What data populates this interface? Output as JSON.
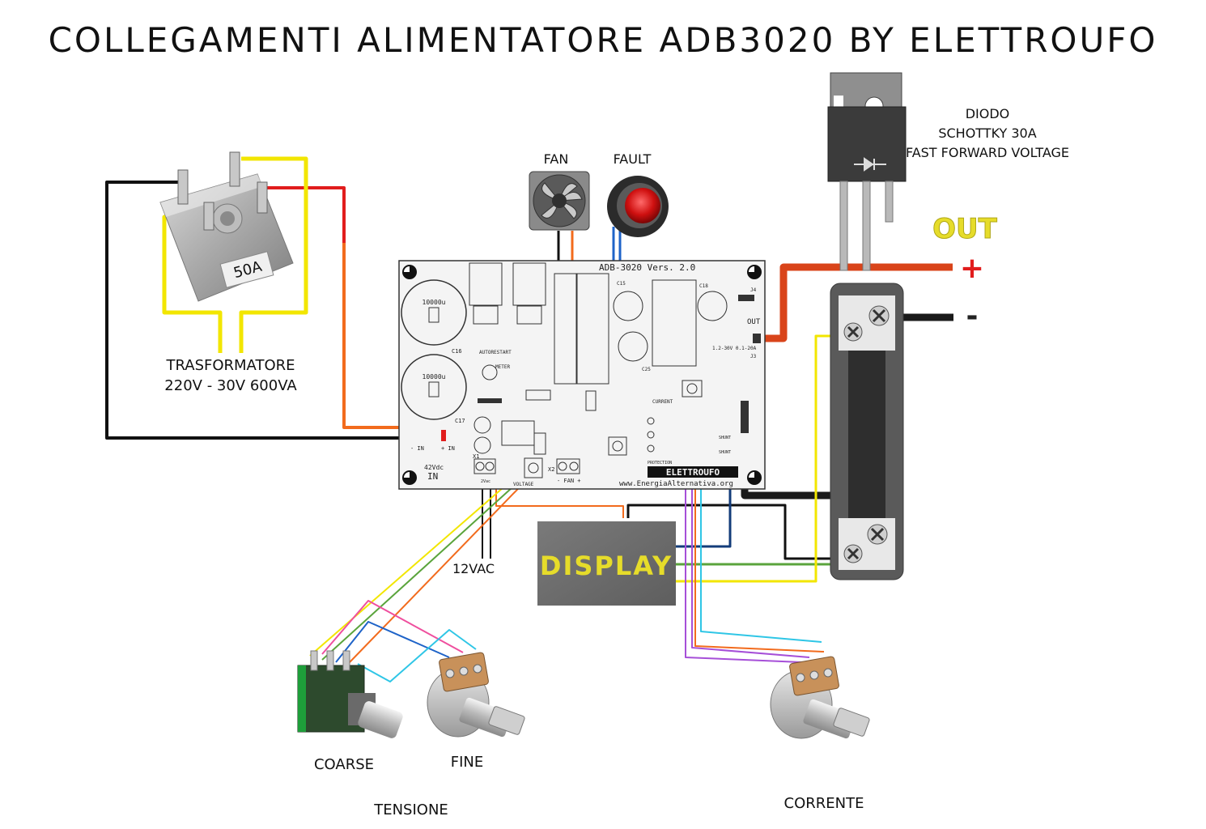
{
  "title": "COLLEGAMENTI ALIMENTATORE ADB3020 BY ELETTROUFO",
  "bridge": {
    "rating": "50A"
  },
  "transformer": {
    "line1": "TRASFORMATORE",
    "line2": "220V - 30V 600VA"
  },
  "fan_label": "FAN",
  "fault_label": "FAULT",
  "diode": {
    "line1": "DIODO",
    "line2": "SCHOTTKY 30A",
    "line3": "FAST FORWARD VOLTAGE"
  },
  "out": {
    "label": "OUT",
    "plus": "+",
    "minus": "-"
  },
  "pcb": {
    "name": "ADB-3020 Vers. 2.0",
    "cap1": "10000u",
    "cap2": "10000u",
    "in_voltage": "42Vdc",
    "in_label": "IN",
    "in_minus": "- IN",
    "in_plus": "+ IN",
    "x1_label": "X1",
    "x2_label": "X2",
    "fan_terminal": "- FAN +",
    "voltage_label": "VOLTAGE",
    "vac_label": "2Vac",
    "current_label": "CURRENT",
    "out_label": "OUT",
    "range_label": "1.2-30V 0.1-20A",
    "logo": "ELETTROUFO",
    "website": "www.EnergiaAlternativa.org",
    "meter_label": "METER",
    "auto_restart": "AUTORESTART",
    "protection": "PROTECTION",
    "shunt1": "SHUNT",
    "shunt2": "SHUNT",
    "j3": "J3",
    "j4": "J4",
    "c16": "C16",
    "c17": "C17",
    "c18": "C18",
    "c25": "C25",
    "c15": "C15"
  },
  "display_label": "DISPLAY",
  "vac12_label": "12VAC",
  "pots": {
    "coarse": "COARSE",
    "fine": "FINE",
    "group_voltage": "TENSIONE",
    "current": "CORRENTE"
  },
  "colors": {
    "black": "#111111",
    "red": "#e11d1d",
    "orange": "#f26b1d",
    "yellow": "#f2e600",
    "green": "#5aa43c",
    "blue": "#1e63c8",
    "navy": "#133c7a",
    "pink": "#ef4f9e",
    "cyan": "#2fc6e6",
    "purple": "#a64fd8",
    "out_text": "#e6dc2a"
  }
}
